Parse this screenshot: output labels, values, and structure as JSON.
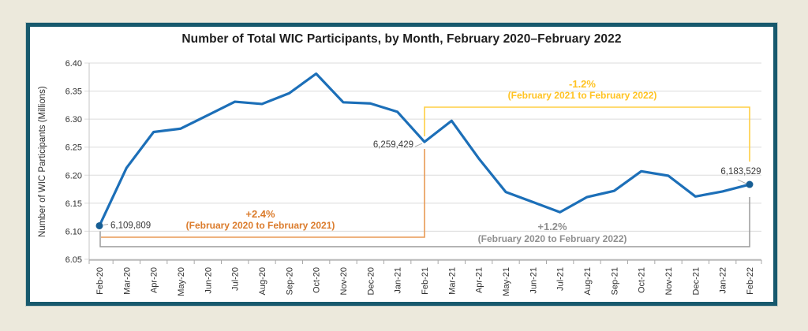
{
  "frame": {
    "background_color": "#ece9dc",
    "border_color": "#17596d",
    "plot_background": "#ffffff"
  },
  "chart_data": {
    "type": "line",
    "title": "Number of Total WIC Participants, by Month, February 2020–February 2022",
    "ylabel": "Number of WIC Participants (Millions)",
    "xlabel": "",
    "ylim": [
      6.05,
      6.4
    ],
    "yticks": [
      "6.40",
      "6.35",
      "6.30",
      "6.25",
      "6.20",
      "6.15",
      "6.10",
      "6.05"
    ],
    "grid": true,
    "legend": false,
    "line_color": "#1c6fb8",
    "marker_color": "#175e94",
    "grid_color": "#dbdbdb",
    "axis_color": "#a8a8a8",
    "tick_label_color": "#303030",
    "categories": [
      "Feb-20",
      "Mar-20",
      "Apr-20",
      "May-20",
      "Jun-20",
      "Jul-20",
      "Aug-20",
      "Sep-20",
      "Oct-20",
      "Nov-20",
      "Dec-20",
      "Jan-21",
      "Feb-21",
      "Mar-21",
      "Apr-21",
      "May-21",
      "Jun-21",
      "Jul-21",
      "Aug-21",
      "Sep-21",
      "Oct-21",
      "Nov-21",
      "Dec-21",
      "Jan-22",
      "Feb-22"
    ],
    "values": [
      6.1098,
      6.213,
      6.277,
      6.283,
      6.307,
      6.331,
      6.327,
      6.346,
      6.381,
      6.33,
      6.328,
      6.313,
      6.2594,
      6.297,
      6.23,
      6.17,
      6.152,
      6.134,
      6.161,
      6.172,
      6.207,
      6.199,
      6.162,
      6.171,
      6.1835
    ],
    "point_labels": [
      {
        "index": 0,
        "text": "6,109,809",
        "placement": "right"
      },
      {
        "index": 12,
        "text": "6,259,429",
        "placement": "left"
      },
      {
        "index": 24,
        "text": "6,183,529",
        "placement": "above"
      }
    ],
    "annotations": [
      {
        "id": "change-2020-2021",
        "pct": "+2.4%",
        "range": "(February 2020 to February 2021)",
        "text_color": "#db7b2b",
        "line_color": "#e89a55",
        "from_index": 0,
        "to_index": 12
      },
      {
        "id": "change-2021-2022",
        "pct": "-1.2%",
        "range": "(February 2021 to February 2022)",
        "text_color": "#ffc322",
        "line_color": "#ffcf43",
        "from_index": 12,
        "to_index": 24
      },
      {
        "id": "change-2020-2022",
        "pct": "+1.2%",
        "range": "(February 2020 to February 2022)",
        "text_color": "#8f8f8f",
        "line_color": "#9b9b9b",
        "from_index": 0,
        "to_index": 24
      }
    ]
  }
}
